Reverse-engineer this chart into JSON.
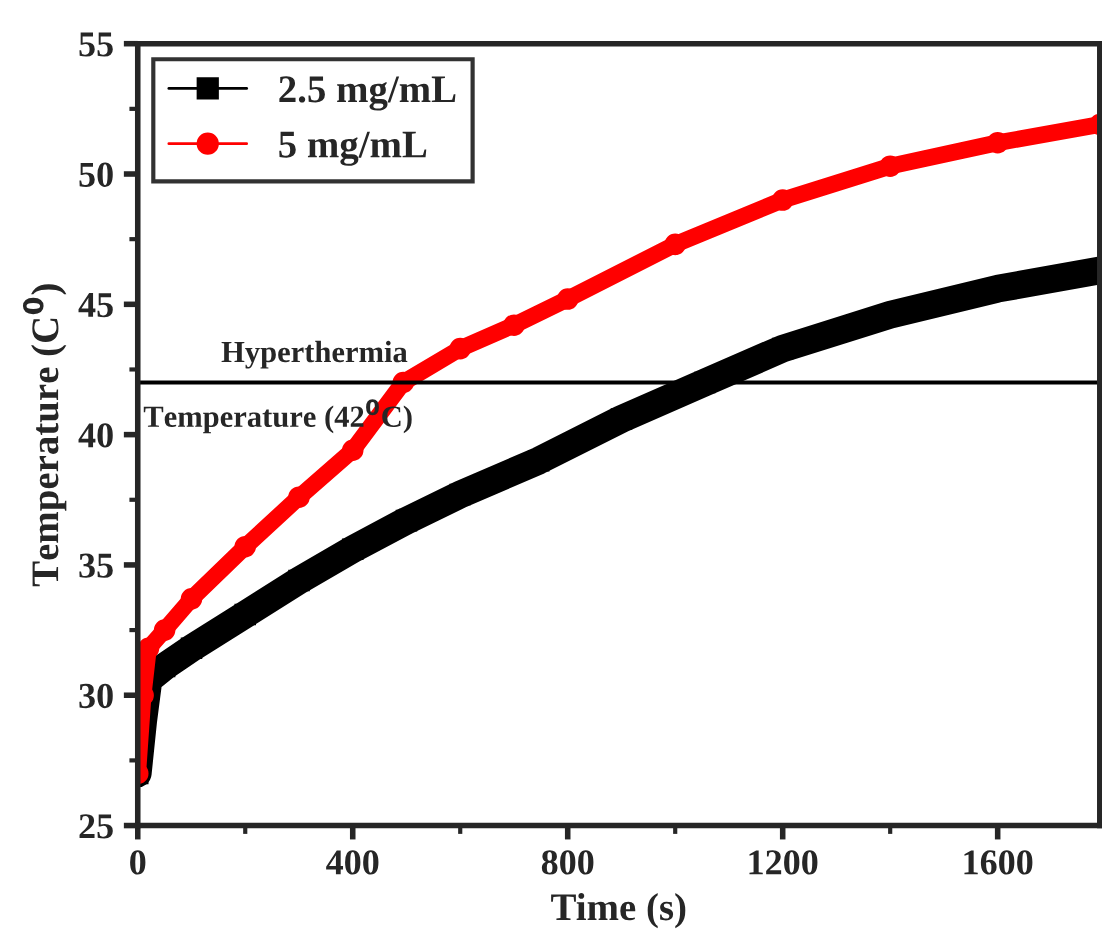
{
  "chart_data": {
    "type": "line",
    "xlabel": "Time (s)",
    "ylabel": "Temperature (C$^{0}$)",
    "xlim": [
      0,
      1790
    ],
    "xticks": [
      0,
      400,
      800,
      1200,
      1600
    ],
    "ylim": [
      25,
      55
    ],
    "yticks": [
      25,
      30,
      35,
      40,
      45,
      50,
      55
    ],
    "legend": "top left",
    "grid": false,
    "series": [
      {
        "name": "2.5 mg/mL",
        "color": "#000000",
        "marker": "square",
        "x": [
          0,
          10,
          20,
          50,
          100,
          200,
          300,
          400,
          500,
          600,
          746,
          900,
          1055,
          1200,
          1400,
          1600,
          1790
        ],
        "values": [
          27,
          29,
          30.6,
          31.1,
          31.8,
          33.1,
          34.4,
          35.6,
          36.7,
          37.7,
          39.0,
          40.6,
          42,
          43.3,
          44.6,
          45.6,
          46.3
        ]
      },
      {
        "name": "5 mg/mL",
        "color": "#ff0000",
        "marker": "circle",
        "x": [
          0,
          10,
          20,
          50,
          100,
          200,
          300,
          400,
          494,
          600,
          700,
          800,
          1000,
          1200,
          1400,
          1600,
          1790
        ],
        "values": [
          27,
          30,
          31.8,
          32.5,
          33.7,
          35.7,
          37.6,
          39.4,
          42,
          43.3,
          44.2,
          45.2,
          47.3,
          49.0,
          50.3,
          51.2,
          51.9
        ]
      }
    ],
    "ref_lines": [
      {
        "axis": "y",
        "value": 42,
        "label": "Hyperthermia",
        "color": "#000000"
      }
    ],
    "annotations": [
      {
        "text": "Temperature (42$^{0}$C)",
        "x": 0,
        "y": 42
      }
    ]
  }
}
